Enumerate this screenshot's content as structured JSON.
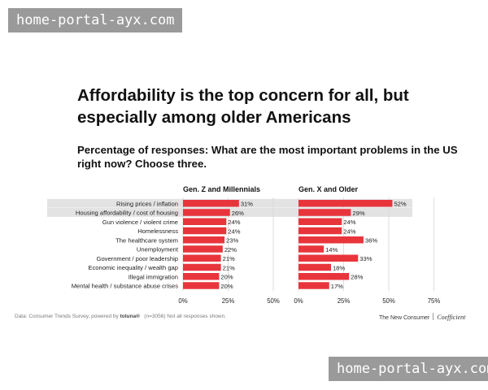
{
  "watermark_top": "home-portal-ayx.com",
  "watermark_bottom": "home-portal-ayx.com",
  "title": "Affordability is the top concern for all, but especially among older Americans",
  "subtitle": "Percentage of responses: What are the most important problems in the US right now? Choose three.",
  "footer": {
    "source_prefix": "Data: Consumer Trends Survey, powered by ",
    "source_brand": "toluna®",
    "source_suffix": "(n=3056) Not all responses shown.",
    "publisher": "The New Consumer",
    "partner": "Coefficient"
  },
  "colors": {
    "bar": "#e8353c",
    "highlight_row": "#e3e3e3",
    "grid": "#d6d6d6",
    "text": "#222222"
  },
  "chart_data": {
    "type": "bar",
    "orientation": "horizontal",
    "categories": [
      "Rising prices / inflation",
      "Housing affordability / cost of housing",
      "Gun violence / violent crime",
      "Homelessness",
      "The healthcare system",
      "Unemployment",
      "Government / poor leadership",
      "Economic inequality / wealth gap",
      "Illegal immigration",
      "Mental health / substance abuse crises"
    ],
    "highlighted_categories": [
      0,
      1
    ],
    "value_suffix": "%",
    "panels": [
      {
        "name": "Gen. Z and Millennials",
        "values": [
          31,
          26,
          24,
          24,
          23,
          22,
          21,
          21,
          20,
          20
        ],
        "xlim": [
          0,
          50
        ],
        "ticks": [
          "0%",
          "25%",
          "50%"
        ]
      },
      {
        "name": "Gen. X and Older",
        "values": [
          52,
          29,
          24,
          24,
          36,
          14,
          33,
          18,
          28,
          17
        ],
        "xlim": [
          0,
          75
        ],
        "ticks": [
          "0%",
          "25%",
          "50%",
          "75%"
        ]
      }
    ]
  }
}
